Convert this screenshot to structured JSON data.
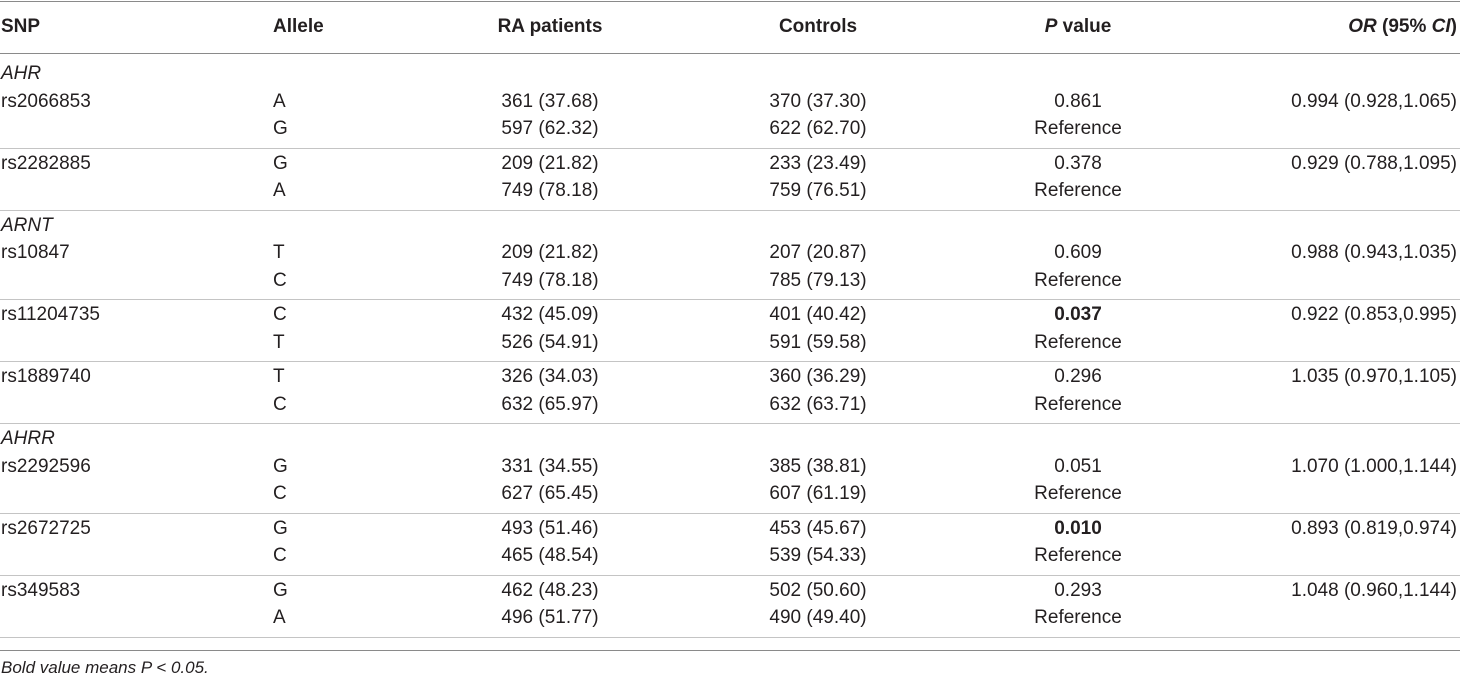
{
  "header": {
    "snp": "SNP",
    "allele": "Allele",
    "ra": "RA patients",
    "controls": "Controls",
    "p_italic": "P",
    "p_rest": " value",
    "or_italic": "OR",
    "or_mid": " (95% ",
    "ci_italic": "CI",
    "or_end": ")"
  },
  "groups": [
    {
      "gene": "AHR",
      "snps": [
        {
          "id": "rs2066853",
          "or": "0.994 (0.928,1.065)",
          "rows": [
            {
              "allele": "A",
              "ra": "361 (37.68)",
              "controls": "370 (37.30)",
              "p": "0.861",
              "bold": false
            },
            {
              "allele": "G",
              "ra": "597 (62.32)",
              "controls": "622 (62.70)",
              "p": "Reference",
              "bold": false
            }
          ]
        },
        {
          "id": "rs2282885",
          "or": "0.929 (0.788,1.095)",
          "rows": [
            {
              "allele": "G",
              "ra": "209 (21.82)",
              "controls": "233 (23.49)",
              "p": "0.378",
              "bold": false
            },
            {
              "allele": "A",
              "ra": "749 (78.18)",
              "controls": "759 (76.51)",
              "p": "Reference",
              "bold": false
            }
          ]
        }
      ]
    },
    {
      "gene": "ARNT",
      "snps": [
        {
          "id": "rs10847",
          "or": "0.988 (0.943,1.035)",
          "rows": [
            {
              "allele": "T",
              "ra": "209 (21.82)",
              "controls": "207 (20.87)",
              "p": "0.609",
              "bold": false
            },
            {
              "allele": "C",
              "ra": "749 (78.18)",
              "controls": "785 (79.13)",
              "p": "Reference",
              "bold": false
            }
          ]
        },
        {
          "id": "rs11204735",
          "or": "0.922 (0.853,0.995)",
          "rows": [
            {
              "allele": "C",
              "ra": "432 (45.09)",
              "controls": "401 (40.42)",
              "p": "0.037",
              "bold": true
            },
            {
              "allele": "T",
              "ra": "526 (54.91)",
              "controls": "591 (59.58)",
              "p": "Reference",
              "bold": false
            }
          ]
        },
        {
          "id": "rs1889740",
          "or": "1.035 (0.970,1.105)",
          "rows": [
            {
              "allele": "T",
              "ra": "326 (34.03)",
              "controls": "360 (36.29)",
              "p": "0.296",
              "bold": false
            },
            {
              "allele": "C",
              "ra": "632 (65.97)",
              "controls": "632 (63.71)",
              "p": "Reference",
              "bold": false
            }
          ]
        }
      ]
    },
    {
      "gene": "AHRR",
      "snps": [
        {
          "id": "rs2292596",
          "or": "1.070 (1.000,1.144)",
          "rows": [
            {
              "allele": "G",
              "ra": "331 (34.55)",
              "controls": "385 (38.81)",
              "p": "0.051",
              "bold": false
            },
            {
              "allele": "C",
              "ra": "627 (65.45)",
              "controls": "607 (61.19)",
              "p": "Reference",
              "bold": false
            }
          ]
        },
        {
          "id": "rs2672725",
          "or": "0.893 (0.819,0.974)",
          "rows": [
            {
              "allele": "G",
              "ra": "493 (51.46)",
              "controls": "453 (45.67)",
              "p": "0.010",
              "bold": true
            },
            {
              "allele": "C",
              "ra": "465 (48.54)",
              "controls": "539 (54.33)",
              "p": "Reference",
              "bold": false
            }
          ]
        },
        {
          "id": "rs349583",
          "or": "1.048 (0.960,1.144)",
          "rows": [
            {
              "allele": "G",
              "ra": "462 (48.23)",
              "controls": "502 (50.60)",
              "p": "0.293",
              "bold": false
            },
            {
              "allele": "A",
              "ra": "496 (51.77)",
              "controls": "490 (49.40)",
              "p": "Reference",
              "bold": false
            }
          ]
        }
      ]
    }
  ],
  "footnote": "Bold value means P < 0.05."
}
